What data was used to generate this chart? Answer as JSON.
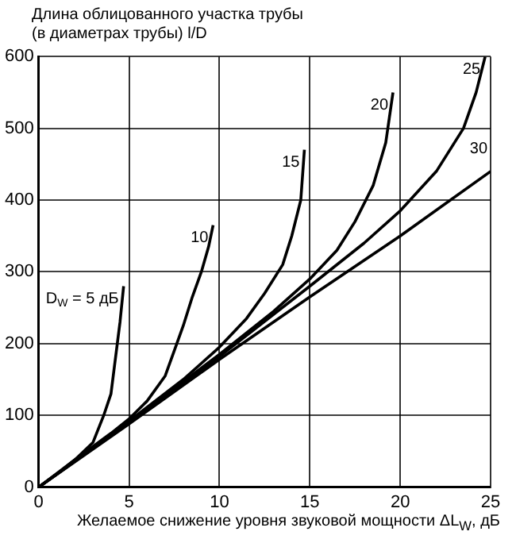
{
  "chart_data": {
    "type": "line",
    "ylabel": "Длина облицованного участка трубы\n(в диаметрах трубы) l/D",
    "xlabel": "Желаемое снижение уровня звуковой мощности ΔL$_{W}$, дБ",
    "xlim": [
      0,
      25
    ],
    "xticks": [
      0,
      5,
      10,
      15,
      20,
      25
    ],
    "ylim": [
      0,
      600
    ],
    "yticks": [
      0,
      100,
      200,
      300,
      400,
      500,
      600
    ],
    "grid": true,
    "legend": false,
    "marker": "none",
    "line_style": "solid",
    "series": [
      {
        "name": "D$_{W}$ = 5 дБ",
        "color": "#000000",
        "x": [
          0,
          1,
          2,
          3,
          3.6,
          4,
          4.35,
          4.5,
          4.7
        ],
        "values": [
          0,
          18,
          38,
          62,
          100,
          130,
          200,
          230,
          280
        ]
      },
      {
        "name": "10",
        "color": "#000000",
        "x": [
          0,
          2,
          4,
          5,
          6,
          7,
          7.5,
          8,
          8.5,
          9,
          9.4,
          9.65
        ],
        "values": [
          0,
          38,
          75,
          95,
          120,
          155,
          190,
          225,
          265,
          300,
          335,
          365
        ]
      },
      {
        "name": "15",
        "color": "#000000",
        "x": [
          0,
          5,
          8,
          10,
          11.5,
          12.5,
          13.5,
          14,
          14.5,
          14.7
        ],
        "values": [
          0,
          92,
          150,
          195,
          235,
          270,
          310,
          350,
          400,
          470
        ]
      },
      {
        "name": "20",
        "color": "#000000",
        "x": [
          0,
          5,
          10,
          13,
          15,
          16.5,
          17.5,
          18.5,
          19.2,
          19.6
        ],
        "values": [
          0,
          90,
          185,
          245,
          290,
          330,
          370,
          420,
          480,
          550
        ]
      },
      {
        "name": "25",
        "color": "#000000",
        "x": [
          0,
          5,
          10,
          15,
          18,
          20,
          22,
          23.5,
          24.2,
          24.7
        ],
        "values": [
          0,
          90,
          182,
          280,
          340,
          385,
          440,
          500,
          550,
          600
        ]
      },
      {
        "name": "30",
        "color": "#000000",
        "x": [
          0,
          5,
          10,
          15,
          20,
          25
        ],
        "values": [
          0,
          88,
          178,
          265,
          350,
          440
        ]
      }
    ]
  }
}
